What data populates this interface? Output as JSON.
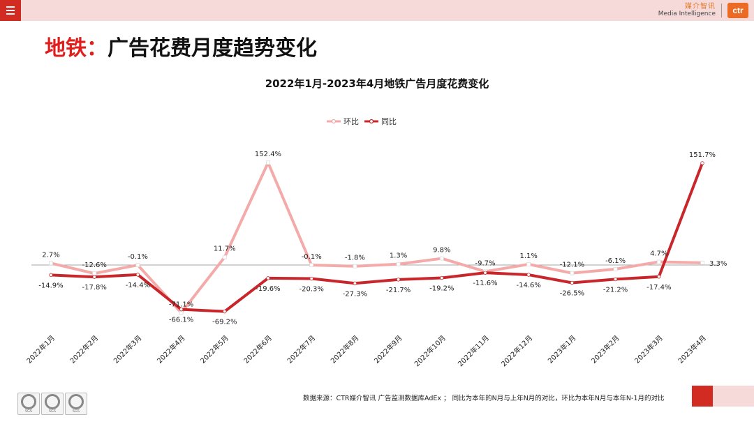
{
  "header": {
    "logo_cn": "媒介智讯",
    "logo_en": "Media Intelligence",
    "logo_mark": "ctr"
  },
  "page": {
    "title_accent": "地铁：",
    "title_main": "广告花费月度趋势变化"
  },
  "footer": {
    "note": "数据来源：CTR媒介智讯 广告监测数据库AdEx ；  同比为本年的N月与上年N月的对比，环比为本年N月与本年N-1月的对比",
    "cert_label": "SGS"
  },
  "colors": {
    "mom": "#f5aaaa",
    "yoy": "#c8262a",
    "brand_red": "#d22b22",
    "pink_bar": "#f6dada"
  },
  "chart_data": {
    "type": "line",
    "title": "2022年1月-2023年4月地铁广告月度花费变化",
    "categories": [
      "2022年1月",
      "2022年2月",
      "2022年3月",
      "2022年4月",
      "2022年5月",
      "2022年6月",
      "2022年7月",
      "2022年8月",
      "2022年9月",
      "2022年10月",
      "2022年11月",
      "2022年12月",
      "2023年1月",
      "2023年2月",
      "2023年3月",
      "2023年4月"
    ],
    "series": [
      {
        "name": "环比",
        "color": "#f5aaaa",
        "values": [
          2.7,
          -12.6,
          -0.1,
          -71.1,
          11.7,
          152.4,
          -0.1,
          -1.8,
          1.3,
          9.8,
          -9.7,
          1.1,
          -12.1,
          -6.1,
          4.7,
          3.3
        ],
        "labels": [
          "2.7%",
          "-12.6%",
          "-0.1%",
          "-71.1%",
          "11.7%",
          "152.4%",
          "-0.1%",
          "-1.8%",
          "1.3%",
          "9.8%",
          "-9.7%",
          "1.1%",
          "-12.1%",
          "-6.1%",
          "4.7%",
          "3.3%"
        ]
      },
      {
        "name": "同比",
        "color": "#c8262a",
        "values": [
          -14.9,
          -17.8,
          -14.4,
          -66.1,
          -69.2,
          -19.6,
          -20.3,
          -27.3,
          -21.7,
          -19.2,
          -11.6,
          -14.6,
          -26.5,
          -21.2,
          -17.4,
          151.7
        ],
        "labels": [
          "-14.9%",
          "-17.8%",
          "-14.4%",
          "-66.1%",
          "-69.2%",
          "-19.6%",
          "-20.3%",
          "-27.3%",
          "-21.7%",
          "-19.2%",
          "-11.6%",
          "-14.6%",
          "-26.5%",
          "-21.2%",
          "-17.4%",
          "151.7%"
        ]
      }
    ],
    "ylim": [
      -80,
      160
    ],
    "legend": "top-center",
    "grid": false,
    "zero_line": true
  }
}
